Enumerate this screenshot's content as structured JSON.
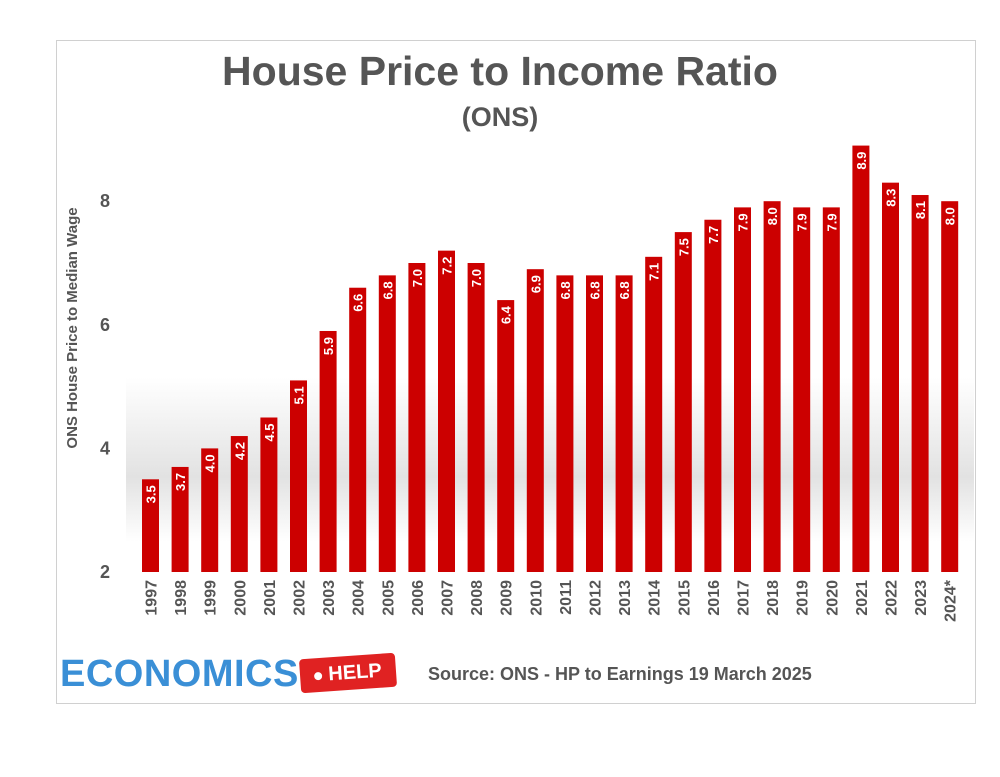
{
  "title": "House Price to Income Ratio",
  "subtitle": "(ONS)",
  "source": "Source: ONS - HP to Earnings 19 March 2025",
  "logo": {
    "word": "ECONOMICS",
    "tag": "HELP"
  },
  "colors": {
    "bar": "#cc0000",
    "bar_label": "#ffffff",
    "text": "#555555",
    "logo_blue": "#3a8fd6",
    "logo_red": "#e02222"
  },
  "chart_data": {
    "type": "bar",
    "title": "House Price to Income Ratio",
    "subtitle": "(ONS)",
    "xlabel": "",
    "ylabel": "ONS House Price to Median Wage",
    "ylim": [
      2,
      9
    ],
    "yticks": [
      2,
      4,
      6,
      8
    ],
    "grid": false,
    "legend": "none",
    "categories": [
      "1997",
      "1998",
      "1999",
      "2000",
      "2001",
      "2002",
      "2003",
      "2004",
      "2005",
      "2006",
      "2007",
      "2008",
      "2009",
      "2010",
      "2011",
      "2012",
      "2013",
      "2014",
      "2015",
      "2016",
      "2017",
      "2018",
      "2019",
      "2020",
      "2021",
      "2022",
      "2023",
      "2024*"
    ],
    "values": [
      3.5,
      3.7,
      4.0,
      4.2,
      4.5,
      5.1,
      5.9,
      6.6,
      6.8,
      7.0,
      7.2,
      7.0,
      6.4,
      6.9,
      6.8,
      6.8,
      6.8,
      7.1,
      7.5,
      7.7,
      7.9,
      8.0,
      7.9,
      7.9,
      8.9,
      8.3,
      8.1,
      8.0
    ],
    "value_labels": [
      "3.5",
      "3.7",
      "4.0",
      "4.2",
      "4.5",
      "5.1",
      "5.9",
      "6.6",
      "6.8",
      "7.0",
      "7.2",
      "7.0",
      "6.4",
      "6.9",
      "6.8",
      "6.8",
      "6.8",
      "7.1",
      "7.5",
      "7.7",
      "7.9",
      "8.0",
      "7.9",
      "7.9",
      "8.9",
      "8.3",
      "8.1",
      "8.0"
    ]
  }
}
